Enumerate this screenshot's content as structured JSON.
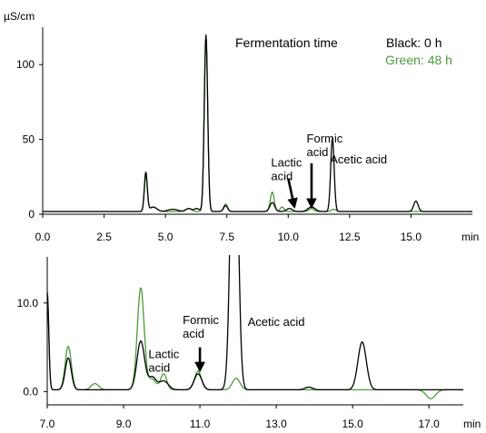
{
  "chart_data": [
    {
      "type": "line",
      "id": "top",
      "ylabel": "µS/cm",
      "xlabel": "min",
      "xlim": [
        0,
        17.5
      ],
      "ylim": [
        0,
        125
      ],
      "x_ticks": [
        "0.0",
        "2.5",
        "5.0",
        "7.5",
        "10.0",
        "12.5",
        "15.0"
      ],
      "x_tick_values": [
        0,
        2.5,
        5,
        7.5,
        10,
        12.5,
        15
      ],
      "y_ticks": [
        "0",
        "50",
        "100"
      ],
      "y_tick_values": [
        0,
        50,
        100
      ],
      "baseline": 1.8,
      "legend": {
        "title": "Fermentation time",
        "black": "Black: 0 h",
        "green": "Green: 48 h"
      },
      "series": [
        {
          "color": "#000000",
          "peaks": [
            {
              "x": 4.2,
              "h": 26,
              "w": 0.06
            },
            {
              "x": 4.5,
              "h": 3,
              "w": 0.15
            },
            {
              "x": 5.3,
              "h": 1.5,
              "w": 0.2
            },
            {
              "x": 5.95,
              "h": 2,
              "w": 0.12
            },
            {
              "x": 6.28,
              "h": 2,
              "w": 0.1
            },
            {
              "x": 6.65,
              "h": 118,
              "w": 0.07
            },
            {
              "x": 7.45,
              "h": 4,
              "w": 0.08
            },
            {
              "x": 9.35,
              "h": 6,
              "w": 0.1
            },
            {
              "x": 10.05,
              "h": 2,
              "w": 0.12
            },
            {
              "x": 10.95,
              "h": 3,
              "w": 0.15
            },
            {
              "x": 11.8,
              "h": 49,
              "w": 0.07
            },
            {
              "x": 15.2,
              "h": 7,
              "w": 0.09
            }
          ]
        },
        {
          "color": "#4a9a3a",
          "peaks": [
            {
              "x": 4.2,
              "h": 24,
              "w": 0.06
            },
            {
              "x": 4.5,
              "h": 3,
              "w": 0.15
            },
            {
              "x": 5.95,
              "h": 2,
              "w": 0.12
            },
            {
              "x": 6.65,
              "h": 116,
              "w": 0.07
            },
            {
              "x": 7.45,
              "h": 5,
              "w": 0.08
            },
            {
              "x": 9.35,
              "h": 13,
              "w": 0.08
            },
            {
              "x": 9.75,
              "h": 3,
              "w": 0.08
            },
            {
              "x": 10.95,
              "h": 2,
              "w": 0.1
            },
            {
              "x": 11.85,
              "h": 1.5,
              "w": 0.1
            }
          ]
        }
      ],
      "annotations": [
        {
          "text": [
            "Lactic",
            "acid"
          ],
          "x": 9.3,
          "y": 32,
          "arrow_from": [
            10.0,
            24
          ],
          "arrow_to": [
            10.25,
            5
          ]
        },
        {
          "text": [
            "Formic",
            "acid"
          ],
          "x": 10.75,
          "y": 48,
          "arrow_from": [
            10.95,
            34
          ],
          "arrow_to": [
            10.95,
            5
          ]
        },
        {
          "text": [
            "Acetic acid"
          ],
          "x": 11.7,
          "y": 34
        }
      ]
    },
    {
      "type": "line",
      "id": "bottom",
      "xlabel": "min",
      "xlim": [
        7.0,
        17.9
      ],
      "ylim": [
        -1.5,
        15.2
      ],
      "x_ticks": [
        "7.0",
        "9.0",
        "11.0",
        "13.0",
        "15.0",
        "17.0"
      ],
      "x_tick_values": [
        7,
        9,
        11,
        13,
        15,
        17
      ],
      "y_ticks": [
        "0.0",
        "10.0"
      ],
      "y_tick_values": [
        0,
        10
      ],
      "baseline": 0.2,
      "series": [
        {
          "color": "#000000",
          "peaks": [
            {
              "x": 7.0,
              "h": 11,
              "w": 0.04
            },
            {
              "x": 7.55,
              "h": 3.6,
              "w": 0.08
            },
            {
              "x": 9.45,
              "h": 5.5,
              "w": 0.1
            },
            {
              "x": 9.75,
              "h": 1.4,
              "w": 0.1
            },
            {
              "x": 10.05,
              "h": 1.0,
              "w": 0.12
            },
            {
              "x": 10.95,
              "h": 1.8,
              "w": 0.1
            },
            {
              "x": 11.9,
              "h": 40,
              "w": 0.09
            },
            {
              "x": 13.85,
              "h": 0.3,
              "w": 0.1
            },
            {
              "x": 15.25,
              "h": 5.4,
              "w": 0.11
            }
          ]
        },
        {
          "color": "#4a9a3a",
          "peaks": [
            {
              "x": 7.0,
              "h": 11,
              "w": 0.04
            },
            {
              "x": 7.55,
              "h": 4.9,
              "w": 0.08
            },
            {
              "x": 8.25,
              "h": 0.7,
              "w": 0.1
            },
            {
              "x": 9.45,
              "h": 11.5,
              "w": 0.09
            },
            {
              "x": 9.75,
              "h": 1.2,
              "w": 0.1
            },
            {
              "x": 10.05,
              "h": 1.8,
              "w": 0.08
            },
            {
              "x": 10.95,
              "h": 2.1,
              "w": 0.09
            },
            {
              "x": 11.95,
              "h": 1.3,
              "w": 0.1
            },
            {
              "x": 17.05,
              "h": -1.0,
              "w": 0.12
            }
          ]
        }
      ],
      "annotations": [
        {
          "text": [
            "Formic",
            "acid"
          ],
          "x": 10.55,
          "y": 7.6,
          "arrow_from": [
            11.0,
            5.0
          ],
          "arrow_to": [
            11.0,
            2.4
          ]
        },
        {
          "text": [
            "Lactic",
            "acid"
          ],
          "x": 9.65,
          "y": 3.8
        },
        {
          "text": [
            "Acetic acid"
          ],
          "x": 12.25,
          "y": 7.4
        }
      ]
    }
  ]
}
